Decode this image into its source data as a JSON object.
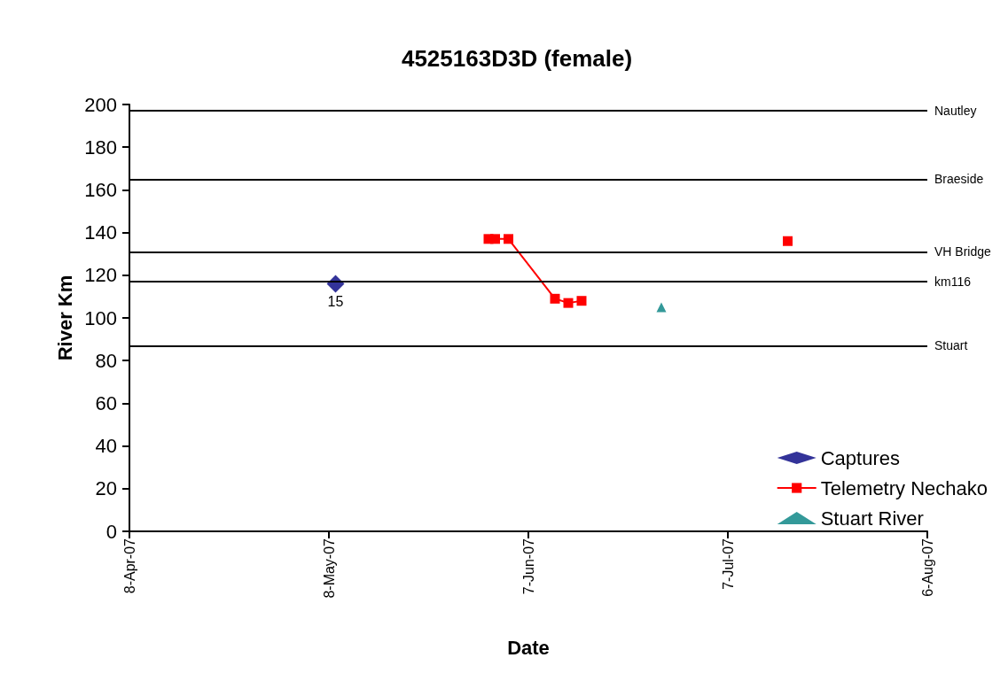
{
  "chart_data": {
    "type": "scatter",
    "title": "4525163D3D (female)",
    "xlabel": "Date",
    "ylabel": "River Km",
    "xlim": [
      "2007-04-08",
      "2007-08-06"
    ],
    "xticks": [
      {
        "value": "2007-04-08",
        "label": "8-Apr-07"
      },
      {
        "value": "2007-05-08",
        "label": "8-May-07"
      },
      {
        "value": "2007-06-07",
        "label": "7-Jun-07"
      },
      {
        "value": "2007-07-07",
        "label": "7-Jul-07"
      },
      {
        "value": "2007-08-06",
        "label": "6-Aug-07"
      }
    ],
    "ylim": [
      0,
      200
    ],
    "yticks": [
      0,
      20,
      40,
      60,
      80,
      100,
      120,
      140,
      160,
      180,
      200
    ],
    "grid": false,
    "legend": "bottom right",
    "series": [
      {
        "name": "Captures",
        "marker": "diamond",
        "color": "#000080",
        "x": [
          "2007-05-09"
        ],
        "values": [
          116
        ]
      },
      {
        "name": "Telemetry Nechako",
        "type": "line",
        "marker": "square",
        "line_style": "solid",
        "color": "#ff0000",
        "x": [
          "2007-06-01",
          "2007-06-02",
          "2007-06-04",
          "2007-06-11",
          "2007-06-13",
          "2007-06-15",
          "2007-06-30",
          "2007-07-16"
        ],
        "values": [
          137,
          137,
          137,
          109,
          107,
          108,
          null,
          136
        ]
      },
      {
        "name": "Stuart River",
        "marker": "triangle",
        "color": "#008080",
        "x": [
          "2007-06-27"
        ],
        "values": [
          105
        ]
      }
    ],
    "ref_lines": [
      {
        "axis": "y",
        "value": 197,
        "label": "Nautley",
        "color": "#000000"
      },
      {
        "axis": "y",
        "value": 165,
        "label": "Braeside",
        "color": "#000000"
      },
      {
        "axis": "y",
        "value": 131,
        "label": "VH Bridge",
        "color": "#000000"
      },
      {
        "axis": "y",
        "value": 117,
        "label": "km116",
        "color": "#000000"
      },
      {
        "axis": "y",
        "value": 87,
        "label": "Stuart",
        "color": "#000000"
      }
    ],
    "annotations": [
      {
        "text": "15",
        "x": "2007-05-09",
        "y": 116
      }
    ]
  }
}
